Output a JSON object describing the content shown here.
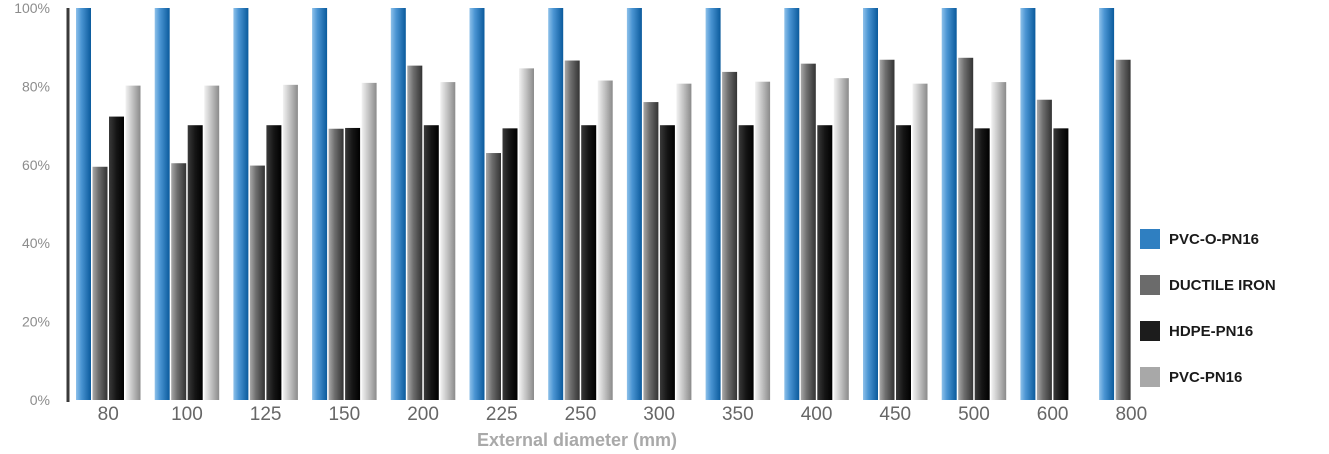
{
  "chart_data": {
    "type": "bar",
    "title": "",
    "xlabel": "External diameter (mm)",
    "ylabel": "",
    "ylim": [
      0,
      100
    ],
    "yticks": [
      "0%",
      "20%",
      "40%",
      "60%",
      "80%",
      "100%"
    ],
    "categories": [
      "80",
      "100",
      "125",
      "150",
      "200",
      "225",
      "250",
      "300",
      "350",
      "400",
      "450",
      "500",
      "600",
      "800"
    ],
    "series": [
      {
        "name": "PVC-O-PN16",
        "color": "#2f7fc1",
        "values": [
          100,
          100,
          100,
          100,
          100,
          100,
          100,
          100,
          100,
          100,
          100,
          100,
          100,
          100
        ]
      },
      {
        "name": "DUCTILE IRON",
        "color": "#6b6b6b",
        "values": [
          59.5,
          60.4,
          59.8,
          69.2,
          85.3,
          63,
          86.6,
          76,
          83.7,
          85.8,
          86.8,
          87.3,
          76.6,
          86.8
        ]
      },
      {
        "name": "HDPE-PN16",
        "color": "#1c1c1c",
        "values": [
          72.3,
          70.1,
          70.1,
          69.4,
          70.1,
          69.3,
          70.1,
          70.1,
          70.1,
          70.1,
          70.1,
          69.3,
          69.3,
          null
        ]
      },
      {
        "name": "PVC-PN16",
        "color": "#a8a8a8",
        "values": [
          80.2,
          80.2,
          80.4,
          80.9,
          81.1,
          84.6,
          81.5,
          80.7,
          81.2,
          82.1,
          80.7,
          81.1,
          null,
          null
        ]
      }
    ],
    "grid": false,
    "legend_position": "right"
  }
}
